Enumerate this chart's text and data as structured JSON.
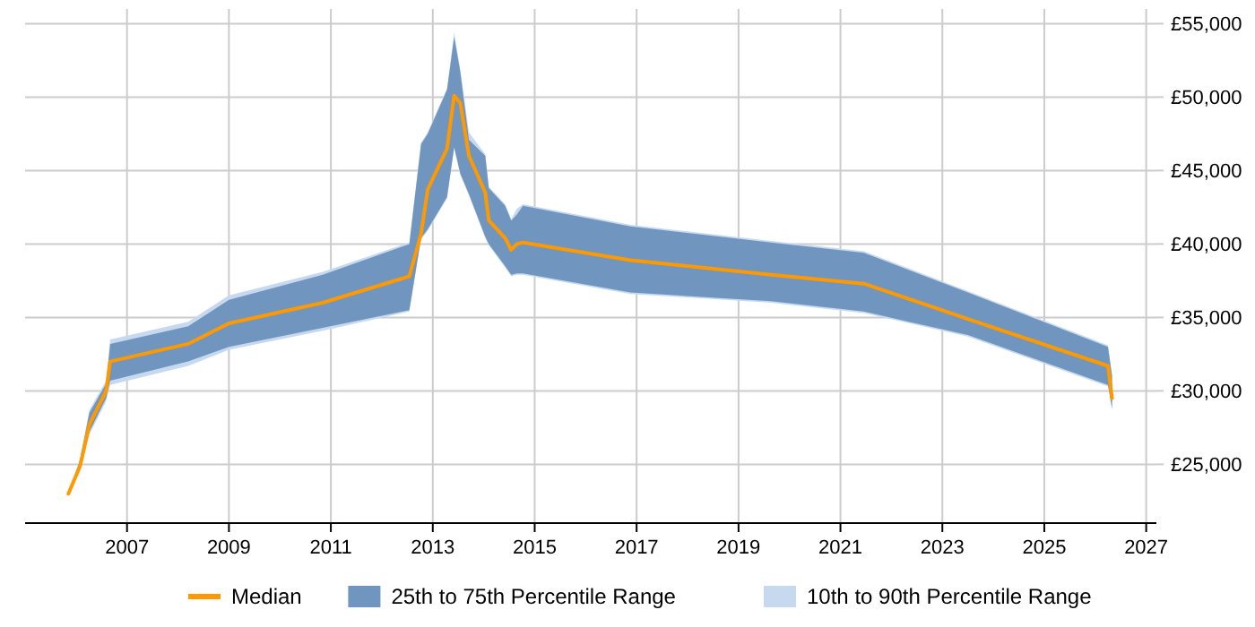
{
  "chart_data": {
    "type": "line",
    "x": [
      2005.85,
      2006.08,
      2006.26,
      2006.59,
      2006.67,
      2008.2,
      2009.0,
      2010.84,
      2012.54,
      2012.77,
      2012.9,
      2013.28,
      2013.42,
      2013.54,
      2013.71,
      2014.03,
      2014.1,
      2014.42,
      2014.54,
      2014.65,
      2014.77,
      2016.88,
      2019.64,
      2021.46,
      2023.5,
      2026.25,
      2026.33
    ],
    "series": [
      {
        "name": "10th to 90th Percentile Range",
        "type": "area",
        "color": "#c6d9ef",
        "values": [
          null,
          null,
          null,
          null,
          null,
          null,
          null,
          null,
          null,
          null,
          null,
          null,
          null,
          null,
          null,
          null,
          null,
          null,
          null,
          null,
          null,
          null,
          null,
          null,
          null,
          null,
          null
        ],
        "lower": [
          23000,
          24500,
          27000,
          29300,
          30400,
          31700,
          32800,
          34100,
          35400,
          40300,
          40900,
          43100,
          46500,
          44700,
          43300,
          40400,
          39900,
          38400,
          37800,
          37900,
          37900,
          36600,
          36000,
          35300,
          33700,
          30300,
          28700
        ],
        "upper": [
          23000,
          25400,
          28700,
          30700,
          33500,
          34700,
          36500,
          38100,
          40100,
          46900,
          47600,
          50600,
          54400,
          51900,
          47600,
          46100,
          43900,
          42700,
          41700,
          42400,
          42700,
          41300,
          40200,
          39500,
          36800,
          33100,
          31100
        ]
      },
      {
        "name": "25th to 75th Percentile Range",
        "type": "area",
        "color": "#7096c0",
        "values": [
          null,
          null,
          null,
          null,
          null,
          null,
          null,
          null,
          null,
          null,
          null,
          null,
          null,
          null,
          null,
          null,
          null,
          null,
          null,
          null,
          null,
          null,
          null,
          null,
          null,
          null,
          null
        ],
        "lower": [
          23000,
          24700,
          27200,
          29500,
          30700,
          32000,
          33000,
          34300,
          35500,
          40400,
          41000,
          43200,
          46600,
          44800,
          43400,
          40500,
          40000,
          38500,
          37900,
          38000,
          38000,
          36700,
          36100,
          35400,
          33800,
          30400,
          28800
        ],
        "upper": [
          23000,
          25300,
          28500,
          30500,
          33200,
          34400,
          36200,
          37900,
          40000,
          46800,
          47500,
          50500,
          54100,
          51700,
          47100,
          46000,
          43800,
          42600,
          41600,
          42000,
          42600,
          41200,
          40100,
          39400,
          36700,
          33000,
          31000
        ]
      },
      {
        "name": "Median",
        "type": "line",
        "color": "#ff9900",
        "values": [
          23000,
          24900,
          27700,
          30000,
          32000,
          33200,
          34600,
          36000,
          37800,
          40700,
          43700,
          46500,
          50100,
          49600,
          46000,
          43500,
          41600,
          40400,
          39600,
          40000,
          40100,
          38900,
          37900,
          37300,
          34900,
          31700,
          29500
        ]
      }
    ],
    "xlim": [
      2005,
      2027.2
    ],
    "xticks": [
      2007,
      2009,
      2011,
      2013,
      2015,
      2017,
      2019,
      2021,
      2023,
      2025,
      2027
    ],
    "ylim": [
      21000,
      56000
    ],
    "yticks": [
      {
        "value": 25000,
        "label": "£25,000"
      },
      {
        "value": 30000,
        "label": "£30,000"
      },
      {
        "value": 35000,
        "label": "£35,000"
      },
      {
        "value": 40000,
        "label": "£40,000"
      },
      {
        "value": 45000,
        "label": "£45,000"
      },
      {
        "value": 50000,
        "label": "£50,000"
      },
      {
        "value": 55000,
        "label": "£55,000"
      }
    ],
    "grid": true,
    "legend": "bottom",
    "marker": "none",
    "line_style": "solid"
  }
}
